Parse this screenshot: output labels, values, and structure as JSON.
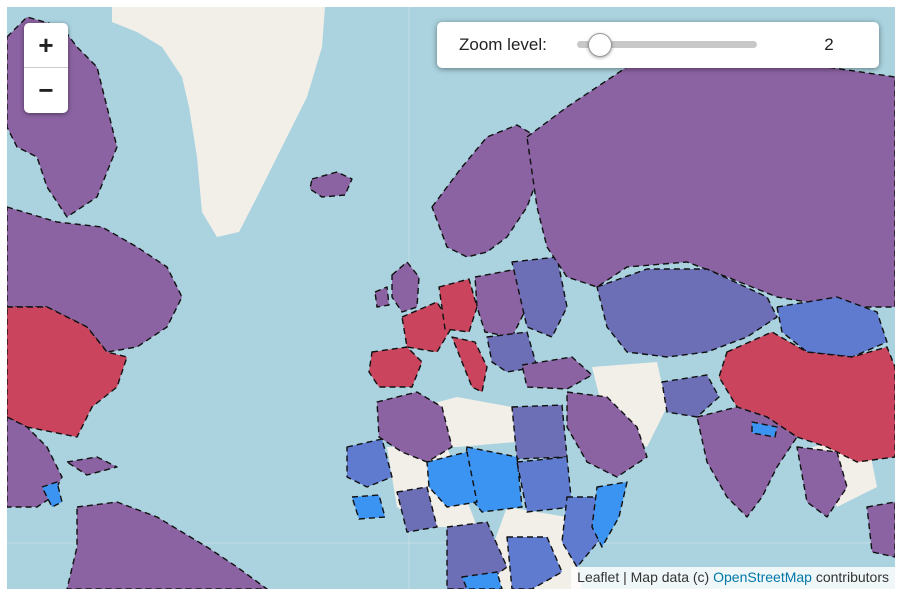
{
  "map": {
    "zoom_in_label": "+",
    "zoom_out_label": "−",
    "zoom_panel": {
      "label": "Zoom level:",
      "value": "2",
      "min": 0,
      "max": 18
    },
    "attribution": {
      "prefix": "Leaflet | Map data (c) ",
      "link_text": "OpenStreetMap",
      "suffix": " contributors"
    },
    "colors": {
      "ocean": "#aad3df",
      "land": "#f2efe9",
      "purple": "#8b62a2",
      "indigo": "#6c6fb6",
      "red": "#c9445c",
      "blue": "#3b93f2",
      "border": "#111111"
    },
    "legend_note": "Choropleth regions shaded from blue through purple to red; dashed borders"
  }
}
